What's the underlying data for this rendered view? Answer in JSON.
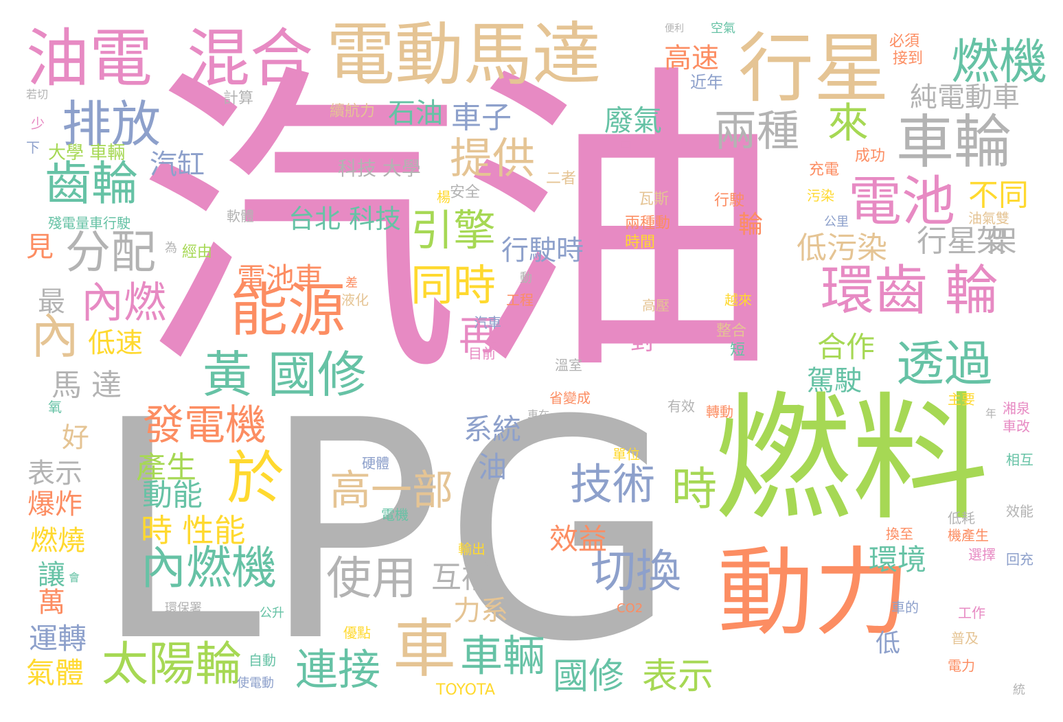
{
  "palette": {
    "pink": "#e78ac3",
    "gray": "#b3b3b3",
    "tan": "#e5c494",
    "green": "#a6d854",
    "orange": "#fc8d62",
    "teal": "#66c2a5",
    "blue": "#8da0cb",
    "yellow": "#ffd92f"
  },
  "words": [
    {
      "text": "汽油",
      "color": "pink"
    },
    {
      "text": "LPG",
      "color": "gray"
    },
    {
      "text": "燃料",
      "color": "green"
    },
    {
      "text": "動力",
      "color": "orange"
    },
    {
      "text": "電動馬達",
      "color": "tan"
    },
    {
      "text": "油電",
      "color": "pink"
    },
    {
      "text": "混合",
      "color": "pink"
    },
    {
      "text": "行星",
      "color": "tan"
    },
    {
      "text": "車輪",
      "color": "gray"
    },
    {
      "text": "電池",
      "color": "pink"
    },
    {
      "text": "環齒 輪",
      "color": "pink"
    },
    {
      "text": "燃機",
      "color": "teal"
    },
    {
      "text": "排放",
      "color": "blue"
    },
    {
      "text": "能源",
      "color": "orange"
    },
    {
      "text": "黃 國修",
      "color": "teal"
    },
    {
      "text": "車",
      "color": "tan"
    },
    {
      "text": "於",
      "color": "yellow"
    },
    {
      "text": "齒輪",
      "color": "teal"
    },
    {
      "text": "分配",
      "color": "gray"
    },
    {
      "text": "內燃",
      "color": "pink"
    },
    {
      "text": "內",
      "color": "tan"
    },
    {
      "text": "太陽輪",
      "color": "green"
    },
    {
      "text": "發電機",
      "color": "orange"
    },
    {
      "text": "內燃機",
      "color": "teal"
    },
    {
      "text": "技術",
      "color": "blue"
    },
    {
      "text": "時",
      "color": "green"
    },
    {
      "text": "切換",
      "color": "blue"
    },
    {
      "text": "透過",
      "color": "teal"
    },
    {
      "text": "兩種",
      "color": "gray"
    },
    {
      "text": "來",
      "color": "green"
    },
    {
      "text": "提供",
      "color": "tan"
    },
    {
      "text": "引擎",
      "color": "green"
    },
    {
      "text": "同時",
      "color": "yellow"
    },
    {
      "text": "使用",
      "color": "gray"
    },
    {
      "text": "高一部",
      "color": "tan"
    },
    {
      "text": "車輛",
      "color": "teal"
    },
    {
      "text": "連接",
      "color": "teal"
    },
    {
      "text": "國修",
      "color": "teal"
    },
    {
      "text": "表示",
      "color": "green"
    },
    {
      "text": "再",
      "color": "pink"
    },
    {
      "text": "石油",
      "color": "teal"
    },
    {
      "text": "車子",
      "color": "blue"
    },
    {
      "text": "純電動車",
      "color": "gray"
    },
    {
      "text": "高速",
      "color": "orange"
    },
    {
      "text": "廢氣",
      "color": "teal"
    },
    {
      "text": "行星 架",
      "color": "gray"
    },
    {
      "text": "不同",
      "color": "yellow"
    },
    {
      "text": "低污染",
      "color": "tan"
    },
    {
      "text": "合作",
      "color": "green"
    },
    {
      "text": "駕駛",
      "color": "teal"
    },
    {
      "text": "環境",
      "color": "teal"
    },
    {
      "text": "電池車",
      "color": "orange"
    },
    {
      "text": "行駛時",
      "color": "blue"
    },
    {
      "text": "台北 科技",
      "color": "teal"
    },
    {
      "text": "汽缸",
      "color": "blue"
    },
    {
      "text": "馬 達",
      "color": "gray"
    },
    {
      "text": "時 性能",
      "color": "yellow"
    },
    {
      "text": "產生",
      "color": "green"
    },
    {
      "text": "動能",
      "color": "teal"
    },
    {
      "text": "效益",
      "color": "orange"
    },
    {
      "text": "互補",
      "color": "gray"
    },
    {
      "text": "力系",
      "color": "tan"
    },
    {
      "text": "系統",
      "color": "blue"
    },
    {
      "text": "油",
      "color": "blue"
    },
    {
      "text": "低速",
      "color": "yellow"
    },
    {
      "text": "見",
      "color": "orange"
    },
    {
      "text": "最",
      "color": "gray"
    },
    {
      "text": "好",
      "color": "tan"
    },
    {
      "text": "表示",
      "color": "gray"
    },
    {
      "text": "爆炸",
      "color": "orange"
    },
    {
      "text": "燃燒",
      "color": "yellow"
    },
    {
      "text": "讓",
      "color": "teal"
    },
    {
      "text": "萬",
      "color": "orange"
    },
    {
      "text": "運轉",
      "color": "blue"
    },
    {
      "text": "氣體",
      "color": "yellow"
    },
    {
      "text": "大學 車輛",
      "color": "green"
    },
    {
      "text": "科技 大學",
      "color": "gray"
    },
    {
      "text": "續航力",
      "color": "tan"
    },
    {
      "text": "計算",
      "color": "gray"
    },
    {
      "text": "近年",
      "color": "blue"
    },
    {
      "text": "必須",
      "color": "orange"
    },
    {
      "text": "接到",
      "color": "orange"
    },
    {
      "text": "空氣",
      "color": "teal"
    },
    {
      "text": "便利",
      "color": "gray"
    },
    {
      "text": "充電",
      "color": "orange"
    },
    {
      "text": "成功",
      "color": "orange"
    },
    {
      "text": "安全",
      "color": "gray"
    },
    {
      "text": "二者",
      "color": "tan"
    },
    {
      "text": "軟體",
      "color": "gray"
    },
    {
      "text": "殘電量車行駛",
      "color": "teal"
    },
    {
      "text": "經由",
      "color": "green"
    },
    {
      "text": "瓦斯",
      "color": "tan"
    },
    {
      "text": "兩種動",
      "color": "orange"
    },
    {
      "text": "時間",
      "color": "yellow"
    },
    {
      "text": "行駛",
      "color": "orange"
    },
    {
      "text": "輪",
      "color": "orange"
    },
    {
      "text": "污染",
      "color": "yellow"
    },
    {
      "text": "公里",
      "color": "blue"
    },
    {
      "text": "油氣雙",
      "color": "tan"
    },
    {
      "text": "高壓",
      "color": "tan"
    },
    {
      "text": "越來",
      "color": "yellow"
    },
    {
      "text": "對",
      "color": "pink"
    },
    {
      "text": "整合",
      "color": "tan"
    },
    {
      "text": "短",
      "color": "teal"
    },
    {
      "text": "工程",
      "color": "orange"
    },
    {
      "text": "汽車",
      "color": "blue"
    },
    {
      "text": "液化",
      "color": "tan"
    },
    {
      "text": "溫室",
      "color": "gray"
    },
    {
      "text": "目前",
      "color": "pink"
    },
    {
      "text": "省變成",
      "color": "orange"
    },
    {
      "text": "有效",
      "color": "gray"
    },
    {
      "text": "轉動",
      "color": "orange"
    },
    {
      "text": "主要",
      "color": "yellow"
    },
    {
      "text": "湘泉",
      "color": "pink"
    },
    {
      "text": "車改",
      "color": "pink"
    },
    {
      "text": "相互",
      "color": "teal"
    },
    {
      "text": "低耗",
      "color": "gray"
    },
    {
      "text": "效能",
      "color": "gray"
    },
    {
      "text": "換至",
      "color": "orange"
    },
    {
      "text": "機產生",
      "color": "orange"
    },
    {
      "text": "選擇",
      "color": "pink"
    },
    {
      "text": "回充",
      "color": "blue"
    },
    {
      "text": "硬體",
      "color": "blue"
    },
    {
      "text": "電機",
      "color": "teal"
    },
    {
      "text": "輸出",
      "color": "yellow"
    },
    {
      "text": "單位",
      "color": "yellow"
    },
    {
      "text": "車在",
      "color": "gray"
    },
    {
      "text": "CO2",
      "color": "orange"
    },
    {
      "text": "車的",
      "color": "blue"
    },
    {
      "text": "工作",
      "color": "pink"
    },
    {
      "text": "普及",
      "color": "tan"
    },
    {
      "text": "電力",
      "color": "orange"
    },
    {
      "text": "自動",
      "color": "teal"
    },
    {
      "text": "使電動",
      "color": "blue"
    },
    {
      "text": "公升",
      "color": "teal"
    },
    {
      "text": "優點",
      "color": "yellow"
    },
    {
      "text": "TOYOTA",
      "color": "yellow"
    },
    {
      "text": "環保署",
      "color": "gray"
    },
    {
      "text": "少",
      "color": "pink"
    },
    {
      "text": "下",
      "color": "blue"
    },
    {
      "text": "若切",
      "color": "gray"
    },
    {
      "text": "為",
      "color": "gray"
    },
    {
      "text": "氧",
      "color": "teal"
    },
    {
      "text": "楊",
      "color": "yellow"
    },
    {
      "text": "只",
      "color": "pink"
    },
    {
      "text": "低",
      "color": "blue"
    },
    {
      "text": "架",
      "color": "gray"
    },
    {
      "text": "會",
      "color": "teal"
    },
    {
      "text": "差",
      "color": "orange"
    },
    {
      "text": "動",
      "color": "gray"
    },
    {
      "text": "統",
      "color": "gray"
    },
    {
      "text": "年",
      "color": "gray"
    }
  ]
}
